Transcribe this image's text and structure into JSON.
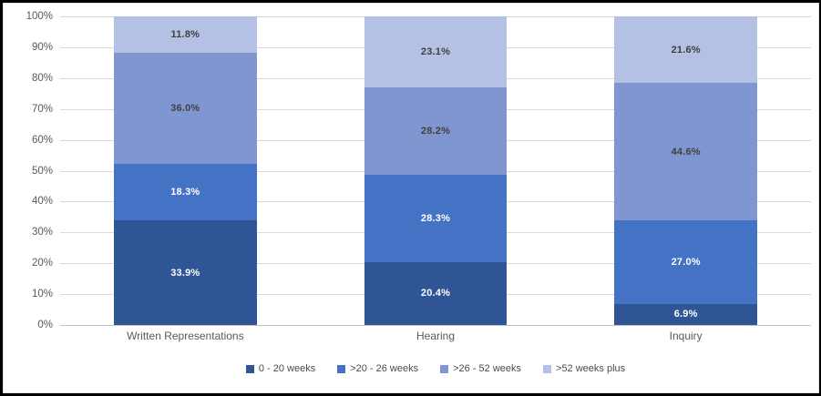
{
  "chart_data": {
    "type": "bar",
    "variant": "stacked-100-percent-column",
    "title": "",
    "categories": [
      "Written Representations",
      "Hearing",
      "Inquiry"
    ],
    "series": [
      {
        "name": "0 - 20 weeks",
        "color": "#2F5597",
        "label_color": "#FFFFFF",
        "values": [
          33.9,
          20.4,
          6.9
        ]
      },
      {
        "name": ">20 - 26 weeks",
        "color": "#4472C4",
        "label_color": "#FFFFFF",
        "values": [
          18.3,
          28.3,
          27.0
        ]
      },
      {
        "name": ">26 - 52 weeks",
        "color": "#8096D0",
        "label_color": "#404040",
        "values": [
          36.0,
          28.2,
          44.6
        ]
      },
      {
        "name": ">52 weeks plus",
        "color": "#B5C0E5",
        "label_color": "#404040",
        "values": [
          11.8,
          23.1,
          21.6
        ]
      }
    ],
    "data_labels": [
      [
        "33.9%",
        "20.4%",
        "6.9%"
      ],
      [
        "18.3%",
        "28.3%",
        "27.0%"
      ],
      [
        "36.0%",
        "28.2%",
        "44.6%"
      ],
      [
        "11.8%",
        "23.1%",
        "21.6%"
      ]
    ],
    "y_axis": {
      "ticks": [
        "0%",
        "10%",
        "20%",
        "30%",
        "40%",
        "50%",
        "60%",
        "70%",
        "80%",
        "90%",
        "100%"
      ],
      "min": 0,
      "max": 100,
      "step": 10
    },
    "grid": true,
    "gridline_color": "#D9D9D9",
    "axis_text_color": "#595959",
    "legend_position": "bottom"
  }
}
